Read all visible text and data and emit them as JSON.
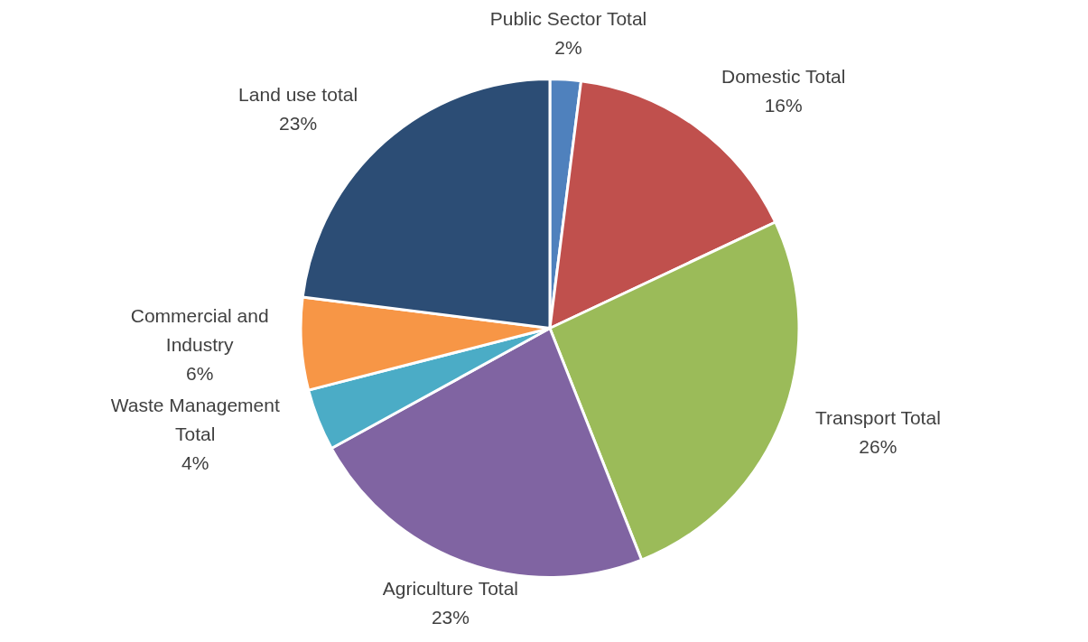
{
  "chart_data": {
    "type": "pie",
    "categories": [
      "Public Sector Total",
      "Domestic Total",
      "Transport Total",
      "Agriculture Total",
      "Waste Management Total",
      "Commercial and Industry",
      "Land use total"
    ],
    "values": [
      2,
      16,
      26,
      23,
      4,
      6,
      23
    ],
    "value_labels": [
      "2%",
      "16%",
      "26%",
      "23%",
      "4%",
      "6%",
      "23%"
    ],
    "colors": [
      "#4f81bd",
      "#c0504d",
      "#9bbb59",
      "#8064a2",
      "#4bacc6",
      "#f79646",
      "#2c4d75"
    ],
    "legend": false
  }
}
